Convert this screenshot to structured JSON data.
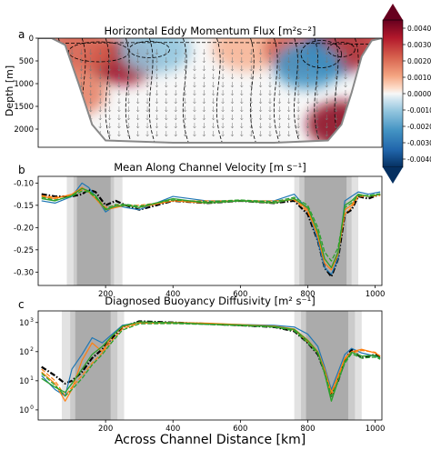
{
  "figure": {
    "xlabel": "Across Channel Distance [km]",
    "x_ticks": [
      200,
      400,
      600,
      800,
      1000
    ]
  },
  "chart_data": [
    {
      "panel": "a",
      "type": "heatmap",
      "title": "Horizontal Eddy Momentum Flux [m²s⁻²]",
      "ylabel": "Depth [m]",
      "y_ticks": [
        0,
        500,
        1000,
        1500,
        2000
      ],
      "xlim": [
        0,
        1020
      ],
      "ylim": [
        2400,
        0
      ],
      "colorbar": {
        "ticks": [
          "0.0040",
          "0.0030",
          "0.0020",
          "0.0010",
          "0.0000",
          "-0.0010",
          "-0.0020",
          "-0.0030",
          "-0.0040"
        ],
        "range": [
          -0.0045,
          0.0045
        ],
        "colormap": "RdBu_r"
      },
      "blobs": [
        {
          "x": 250,
          "depth": 500,
          "value": 0.0038
        },
        {
          "x": 120,
          "depth": 250,
          "value": 0.0025
        },
        {
          "x": 350,
          "depth": 250,
          "value": -0.0015
        },
        {
          "x": 620,
          "depth": 200,
          "value": 0.0012
        },
        {
          "x": 770,
          "depth": 250,
          "value": 0.0025
        },
        {
          "x": 880,
          "depth": 300,
          "value": -0.004
        },
        {
          "x": 945,
          "depth": 150,
          "value": 0.003
        },
        {
          "x": 800,
          "depth": 600,
          "value": -0.0025
        },
        {
          "x": 900,
          "depth": 1900,
          "value": 0.004
        },
        {
          "x": 100,
          "depth": 1200,
          "value": 0.002
        }
      ]
    },
    {
      "panel": "b",
      "type": "line",
      "title": "Mean Along Channel Velocity [m s⁻¹]",
      "y_ticks": [
        -0.1,
        -0.15,
        -0.2,
        -0.25,
        -0.3
      ],
      "y_tick_labels": [
        "-0.10",
        "-0.15",
        "-0.20",
        "-0.25",
        "-0.30"
      ],
      "ylim": [
        -0.33,
        -0.085
      ],
      "xlim": [
        0,
        1020
      ],
      "shading": [
        {
          "range": [
            85,
            250
          ],
          "level": "light"
        },
        {
          "range": [
            105,
            225
          ],
          "level": "mid"
        },
        {
          "range": [
            115,
            215
          ],
          "level": "dark"
        },
        {
          "range": [
            760,
            950
          ],
          "level": "light"
        },
        {
          "range": [
            775,
            930
          ],
          "level": "mid"
        },
        {
          "range": [
            790,
            915
          ],
          "level": "dark"
        }
      ],
      "x": [
        10,
        50,
        100,
        130,
        150,
        170,
        200,
        230,
        260,
        300,
        400,
        500,
        600,
        700,
        760,
        800,
        830,
        850,
        870,
        890,
        910,
        930,
        950,
        980,
        1015
      ],
      "series": [
        {
          "color": "#000000",
          "dash": "dashdot",
          "width": 2.2,
          "values": [
            -0.125,
            -0.13,
            -0.13,
            -0.125,
            -0.115,
            -0.12,
            -0.15,
            -0.14,
            -0.15,
            -0.16,
            -0.14,
            -0.145,
            -0.14,
            -0.145,
            -0.14,
            -0.17,
            -0.23,
            -0.29,
            -0.31,
            -0.27,
            -0.17,
            -0.16,
            -0.13,
            -0.135,
            -0.125
          ]
        },
        {
          "color": "#1f77b4",
          "dash": "solid",
          "width": 1.2,
          "values": [
            -0.14,
            -0.145,
            -0.13,
            -0.1,
            -0.11,
            -0.13,
            -0.165,
            -0.15,
            -0.155,
            -0.16,
            -0.13,
            -0.14,
            -0.14,
            -0.14,
            -0.125,
            -0.16,
            -0.23,
            -0.29,
            -0.305,
            -0.27,
            -0.14,
            -0.13,
            -0.12,
            -0.125,
            -0.12
          ]
        },
        {
          "color": "#ff7f0e",
          "dash": "solid",
          "width": 1.2,
          "values": [
            -0.13,
            -0.135,
            -0.125,
            -0.11,
            -0.12,
            -0.135,
            -0.16,
            -0.155,
            -0.15,
            -0.155,
            -0.14,
            -0.145,
            -0.14,
            -0.145,
            -0.135,
            -0.16,
            -0.22,
            -0.28,
            -0.295,
            -0.26,
            -0.16,
            -0.15,
            -0.125,
            -0.13,
            -0.125
          ]
        },
        {
          "color": "#ff7f0e",
          "dash": "dashed",
          "width": 1.2,
          "values": [
            -0.128,
            -0.132,
            -0.128,
            -0.115,
            -0.118,
            -0.13,
            -0.155,
            -0.15,
            -0.15,
            -0.15,
            -0.14,
            -0.14,
            -0.14,
            -0.14,
            -0.138,
            -0.165,
            -0.215,
            -0.27,
            -0.29,
            -0.255,
            -0.17,
            -0.155,
            -0.13,
            -0.13,
            -0.128
          ]
        },
        {
          "color": "#2ca02c",
          "dash": "solid",
          "width": 1.3,
          "values": [
            -0.135,
            -0.14,
            -0.128,
            -0.112,
            -0.118,
            -0.128,
            -0.16,
            -0.152,
            -0.15,
            -0.155,
            -0.135,
            -0.145,
            -0.14,
            -0.145,
            -0.135,
            -0.155,
            -0.21,
            -0.27,
            -0.29,
            -0.255,
            -0.15,
            -0.14,
            -0.125,
            -0.13,
            -0.125
          ]
        },
        {
          "color": "#2ca02c",
          "dash": "dashed",
          "width": 1.3,
          "values": [
            -0.132,
            -0.138,
            -0.13,
            -0.118,
            -0.12,
            -0.132,
            -0.158,
            -0.148,
            -0.148,
            -0.152,
            -0.138,
            -0.142,
            -0.138,
            -0.142,
            -0.132,
            -0.15,
            -0.2,
            -0.255,
            -0.275,
            -0.245,
            -0.155,
            -0.145,
            -0.128,
            -0.128,
            -0.124
          ]
        }
      ]
    },
    {
      "panel": "c",
      "type": "line",
      "title": "Diagnosed Buoyancy Diffusivity [m² s⁻¹]",
      "yscale": "log",
      "y_ticks": [
        1,
        10,
        100,
        1000
      ],
      "y_tick_labels": [
        [
          "10",
          "0"
        ],
        [
          "10",
          "1"
        ],
        [
          "10",
          "2"
        ],
        [
          "10",
          "3"
        ]
      ],
      "ylim": [
        0.45,
        2500
      ],
      "xlim": [
        0,
        1020
      ],
      "shading": [
        {
          "range": [
            70,
            255
          ],
          "level": "light"
        },
        {
          "range": [
            95,
            235
          ],
          "level": "mid"
        },
        {
          "range": [
            110,
            215
          ],
          "level": "dark"
        },
        {
          "range": [
            760,
            960
          ],
          "level": "light"
        },
        {
          "range": [
            780,
            940
          ],
          "level": "mid"
        },
        {
          "range": [
            795,
            920
          ],
          "level": "dark"
        }
      ],
      "x": [
        10,
        50,
        80,
        100,
        130,
        160,
        190,
        220,
        250,
        300,
        400,
        500,
        600,
        700,
        760,
        800,
        830,
        850,
        870,
        890,
        910,
        930,
        960,
        1000,
        1015
      ],
      "series": [
        {
          "color": "#000000",
          "dash": "dashdot",
          "width": 2.2,
          "values": [
            30,
            15,
            8,
            10,
            20,
            60,
            120,
            300,
            700,
            1100,
            1000,
            900,
            800,
            700,
            500,
            200,
            80,
            20,
            3,
            10,
            50,
            120,
            60,
            80,
            60
          ]
        },
        {
          "color": "#1f77b4",
          "dash": "solid",
          "width": 1.2,
          "values": [
            15,
            5,
            3,
            25,
            80,
            300,
            200,
            400,
            800,
            1000,
            950,
            900,
            850,
            800,
            700,
            400,
            150,
            30,
            5,
            20,
            80,
            130,
            90,
            70,
            60
          ]
        },
        {
          "color": "#ff7f0e",
          "dash": "solid",
          "width": 1.2,
          "values": [
            20,
            8,
            2,
            5,
            50,
            200,
            100,
            350,
            700,
            1000,
            1000,
            950,
            850,
            750,
            600,
            250,
            100,
            25,
            4,
            15,
            60,
            100,
            120,
            90,
            70
          ]
        },
        {
          "color": "#ff7f0e",
          "dash": "dashed",
          "width": 1.2,
          "values": [
            25,
            10,
            3,
            6,
            15,
            40,
            90,
            250,
            600,
            950,
            950,
            900,
            800,
            750,
            550,
            220,
            90,
            22,
            3,
            12,
            55,
            90,
            110,
            95,
            70
          ]
        },
        {
          "color": "#2ca02c",
          "dash": "solid",
          "width": 1.3,
          "values": [
            12,
            6,
            4,
            8,
            25,
            80,
            150,
            350,
            750,
            1050,
            980,
            880,
            820,
            720,
            580,
            240,
            95,
            18,
            2,
            10,
            45,
            95,
            70,
            75,
            60
          ]
        },
        {
          "color": "#2ca02c",
          "dash": "dashed",
          "width": 1.3,
          "values": [
            18,
            7,
            3,
            5,
            12,
            35,
            80,
            220,
            550,
            900,
            920,
            860,
            780,
            700,
            520,
            200,
            85,
            20,
            3,
            10,
            40,
            85,
            60,
            65,
            55
          ]
        }
      ]
    }
  ]
}
